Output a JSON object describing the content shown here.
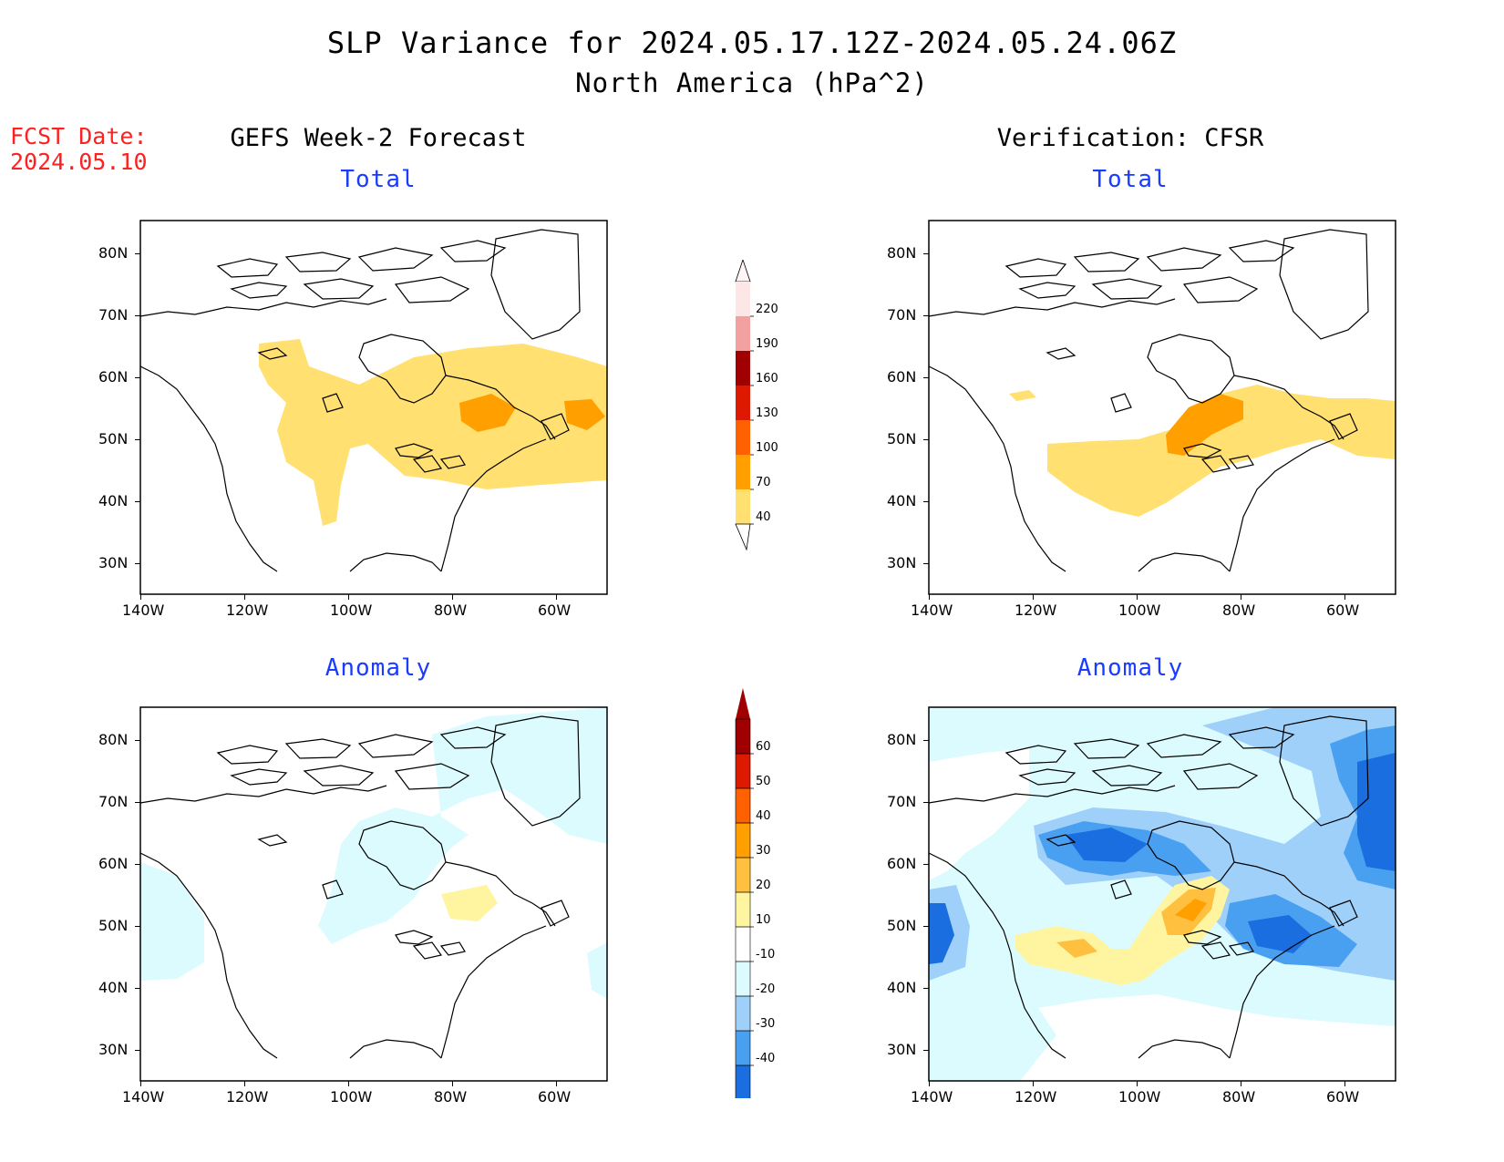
{
  "header": {
    "title": "SLP Variance for 2024.05.17.12Z-2024.05.24.06Z",
    "subtitle": "North America (hPa^2)",
    "fcst_label": "FCST Date:",
    "fcst_date": "2024.05.10"
  },
  "columns": {
    "left": "GEFS Week-2 Forecast",
    "right": "Verification: CFSR"
  },
  "panels": {
    "total_label": "Total",
    "anomaly_label": "Anomaly"
  },
  "axes": {
    "lat_ticks": [
      "80N",
      "70N",
      "60N",
      "50N",
      "40N",
      "30N"
    ],
    "lon_ticks": [
      "140W",
      "120W",
      "100W",
      "80W",
      "60W"
    ]
  },
  "colorbar_total": {
    "labels": [
      "220",
      "190",
      "160",
      "130",
      "100",
      "70",
      "40"
    ],
    "colors": [
      "#fde6e6",
      "#f3a0a0",
      "#a00000",
      "#dd1a00",
      "#ff6000",
      "#ff9f00",
      "#ffe070"
    ]
  },
  "colorbar_anomaly": {
    "labels": [
      "60",
      "50",
      "40",
      "30",
      "20",
      "10",
      "-10",
      "-20",
      "-30",
      "-40"
    ],
    "colors": [
      "#a00000",
      "#dd1a00",
      "#ff6000",
      "#ff9f00",
      "#ffbf3f",
      "#fff5a0",
      "#ffffff",
      "#dcfbff",
      "#9fd0fa",
      "#4aa0f0",
      "#1a6ee0",
      "#1a6ee0"
    ]
  }
}
